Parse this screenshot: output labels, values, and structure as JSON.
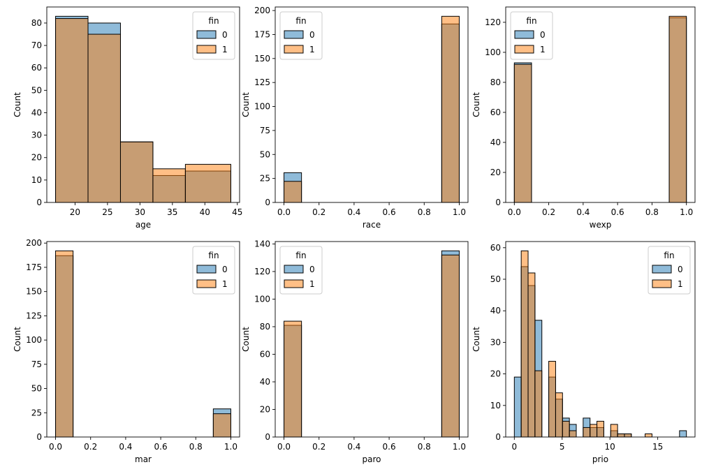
{
  "chart_data": [
    {
      "type": "histogram",
      "xlabel": "age",
      "ylabel": "Count",
      "xlim": [
        15.65,
        45.35
      ],
      "ylim": [
        0,
        87.15
      ],
      "xticks": [
        20,
        25,
        30,
        35,
        40,
        45
      ],
      "yticks": [
        0,
        10,
        20,
        30,
        40,
        50,
        60,
        70,
        80
      ],
      "bin_edges": [
        17,
        22,
        27,
        32,
        37,
        44
      ],
      "legend": {
        "title": "fin",
        "position": "top-right",
        "entries": [
          "0",
          "1"
        ]
      },
      "series": [
        {
          "name": "0",
          "values": [
            83,
            80,
            27,
            12,
            14
          ]
        },
        {
          "name": "1",
          "values": [
            82,
            75,
            27,
            15,
            17
          ]
        }
      ]
    },
    {
      "type": "histogram",
      "xlabel": "race",
      "ylabel": "Count",
      "xlim": [
        -0.05,
        1.05
      ],
      "ylim": [
        0,
        203.7
      ],
      "xticks": [
        0.0,
        0.2,
        0.4,
        0.6,
        0.8,
        1.0
      ],
      "yticks": [
        0,
        25,
        50,
        75,
        100,
        125,
        150,
        175,
        200
      ],
      "bin_edges": [
        0,
        0.1,
        0.2,
        0.3,
        0.4,
        0.5,
        0.6,
        0.7,
        0.8,
        0.9,
        1.0
      ],
      "legend": {
        "title": "fin",
        "position": "top-left",
        "entries": [
          "0",
          "1"
        ]
      },
      "series": [
        {
          "name": "0",
          "values": [
            31,
            0,
            0,
            0,
            0,
            0,
            0,
            0,
            0,
            186
          ]
        },
        {
          "name": "1",
          "values": [
            22,
            0,
            0,
            0,
            0,
            0,
            0,
            0,
            0,
            194
          ]
        }
      ]
    },
    {
      "type": "histogram",
      "xlabel": "wexp",
      "ylabel": "Count",
      "xlim": [
        -0.05,
        1.05
      ],
      "ylim": [
        0,
        130.2
      ],
      "xticks": [
        0.0,
        0.2,
        0.4,
        0.6,
        0.8,
        1.0
      ],
      "yticks": [
        0,
        20,
        40,
        60,
        80,
        100,
        120
      ],
      "bin_edges": [
        0,
        0.1,
        0.2,
        0.3,
        0.4,
        0.5,
        0.6,
        0.7,
        0.8,
        0.9,
        1.0
      ],
      "legend": {
        "title": "fin",
        "position": "top-left",
        "entries": [
          "0",
          "1"
        ]
      },
      "series": [
        {
          "name": "0",
          "values": [
            93,
            0,
            0,
            0,
            0,
            0,
            0,
            0,
            0,
            123
          ]
        },
        {
          "name": "1",
          "values": [
            92,
            0,
            0,
            0,
            0,
            0,
            0,
            0,
            0,
            124
          ]
        }
      ]
    },
    {
      "type": "histogram",
      "xlabel": "mar",
      "ylabel": "Count",
      "xlim": [
        -0.05,
        1.05
      ],
      "ylim": [
        0,
        201.6
      ],
      "xticks": [
        0.0,
        0.2,
        0.4,
        0.6,
        0.8,
        1.0
      ],
      "yticks": [
        0,
        25,
        50,
        75,
        100,
        125,
        150,
        175,
        200
      ],
      "bin_edges": [
        0,
        0.1,
        0.2,
        0.3,
        0.4,
        0.5,
        0.6,
        0.7,
        0.8,
        0.9,
        1.0
      ],
      "legend": {
        "title": "fin",
        "position": "top-right",
        "entries": [
          "0",
          "1"
        ]
      },
      "series": [
        {
          "name": "0",
          "values": [
            187,
            0,
            0,
            0,
            0,
            0,
            0,
            0,
            0,
            29
          ]
        },
        {
          "name": "1",
          "values": [
            192,
            0,
            0,
            0,
            0,
            0,
            0,
            0,
            0,
            24
          ]
        }
      ]
    },
    {
      "type": "histogram",
      "xlabel": "paro",
      "ylabel": "Count",
      "xlim": [
        -0.05,
        1.05
      ],
      "ylim": [
        0,
        141.75
      ],
      "xticks": [
        0.0,
        0.2,
        0.4,
        0.6,
        0.8,
        1.0
      ],
      "yticks": [
        0,
        20,
        40,
        60,
        80,
        100,
        120,
        140
      ],
      "bin_edges": [
        0,
        0.1,
        0.2,
        0.3,
        0.4,
        0.5,
        0.6,
        0.7,
        0.8,
        0.9,
        1.0
      ],
      "legend": {
        "title": "fin",
        "position": "top-left",
        "entries": [
          "0",
          "1"
        ]
      },
      "series": [
        {
          "name": "0",
          "values": [
            81,
            0,
            0,
            0,
            0,
            0,
            0,
            0,
            0,
            135
          ]
        },
        {
          "name": "1",
          "values": [
            84,
            0,
            0,
            0,
            0,
            0,
            0,
            0,
            0,
            132
          ]
        }
      ]
    },
    {
      "type": "histogram",
      "xlabel": "prio",
      "ylabel": "Count",
      "xlim": [
        -0.9,
        18.9
      ],
      "ylim": [
        0,
        61.95
      ],
      "xticks": [
        0,
        5,
        10,
        15
      ],
      "yticks": [
        0,
        10,
        20,
        30,
        40,
        50,
        60
      ],
      "bin_edges": [
        0,
        0.72,
        1.44,
        2.16,
        2.88,
        3.6,
        4.32,
        5.04,
        5.76,
        6.48,
        7.2,
        7.92,
        8.64,
        9.36,
        10.08,
        10.8,
        11.52,
        12.24,
        12.96,
        13.68,
        14.4,
        15.12,
        15.84,
        16.56,
        17.28,
        18.0
      ],
      "legend": {
        "title": "fin",
        "position": "top-right",
        "entries": [
          "0",
          "1"
        ]
      },
      "series": [
        {
          "name": "0",
          "values": [
            19,
            54,
            48,
            37,
            0,
            19,
            12,
            6,
            4,
            0,
            6,
            3,
            3,
            0,
            2,
            1,
            1,
            0,
            0,
            0,
            0,
            0,
            0,
            0,
            2
          ]
        },
        {
          "name": "1",
          "values": [
            0,
            59,
            52,
            21,
            0,
            24,
            14,
            5,
            2,
            0,
            3,
            4,
            5,
            0,
            4,
            1,
            1,
            0,
            0,
            1,
            0,
            0,
            0,
            0,
            0
          ]
        }
      ]
    }
  ]
}
